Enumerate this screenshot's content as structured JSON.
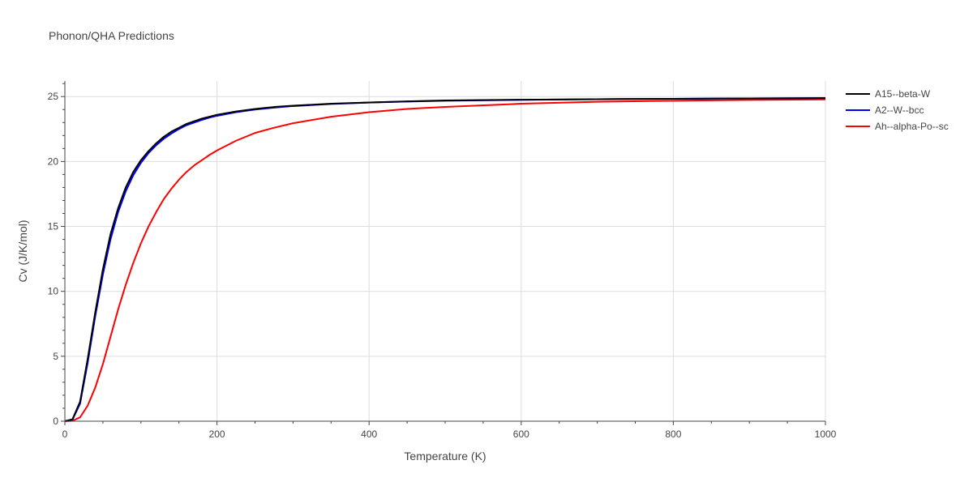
{
  "chart_data": {
    "type": "line",
    "title": "Phonon/QHA Predictions",
    "xlabel": "Temperature (K)",
    "ylabel": "Cv (J/K/mol)",
    "xlim": [
      0,
      1000
    ],
    "ylim": [
      0,
      26.2
    ],
    "x_ticks": [
      0,
      200,
      400,
      600,
      800,
      1000
    ],
    "y_ticks": [
      0,
      5,
      10,
      15,
      20,
      25
    ],
    "grid": true,
    "legend_position": "top-right, outside plot",
    "series": [
      {
        "name": "A15--beta-W",
        "color": "#000000",
        "x": [
          0,
          10,
          20,
          30,
          40,
          50,
          60,
          70,
          80,
          90,
          100,
          110,
          120,
          130,
          140,
          150,
          160,
          170,
          180,
          190,
          200,
          225,
          250,
          275,
          300,
          350,
          400,
          450,
          500,
          600,
          700,
          800,
          900,
          1000
        ],
        "y": [
          0,
          0.15,
          1.5,
          4.8,
          8.4,
          11.7,
          14.4,
          16.4,
          18.0,
          19.2,
          20.1,
          20.8,
          21.4,
          21.9,
          22.3,
          22.6,
          22.9,
          23.1,
          23.3,
          23.45,
          23.6,
          23.85,
          24.05,
          24.2,
          24.3,
          24.45,
          24.55,
          24.63,
          24.7,
          24.76,
          24.8,
          24.83,
          24.86,
          24.88
        ]
      },
      {
        "name": "A2--W--bcc",
        "color": "#0000ff",
        "x": [
          0,
          10,
          20,
          30,
          40,
          50,
          60,
          70,
          80,
          90,
          100,
          110,
          120,
          130,
          140,
          150,
          160,
          170,
          180,
          190,
          200,
          225,
          250,
          275,
          300,
          350,
          400,
          450,
          500,
          600,
          700,
          800,
          900,
          1000
        ],
        "y": [
          0,
          0.12,
          1.35,
          4.5,
          8.1,
          11.3,
          14.0,
          16.1,
          17.7,
          18.95,
          19.9,
          20.65,
          21.25,
          21.75,
          22.15,
          22.5,
          22.8,
          23.0,
          23.2,
          23.38,
          23.52,
          23.8,
          24.0,
          24.15,
          24.27,
          24.43,
          24.54,
          24.62,
          24.68,
          24.75,
          24.8,
          24.83,
          24.86,
          24.88
        ]
      },
      {
        "name": "Ah--alpha-Po--sc",
        "color": "#ff0000",
        "x": [
          0,
          10,
          20,
          30,
          40,
          50,
          60,
          70,
          80,
          90,
          100,
          110,
          120,
          130,
          140,
          150,
          160,
          170,
          180,
          190,
          200,
          225,
          250,
          275,
          300,
          350,
          400,
          450,
          500,
          600,
          700,
          800,
          900,
          1000
        ],
        "y": [
          0,
          0.03,
          0.3,
          1.2,
          2.6,
          4.4,
          6.5,
          8.6,
          10.5,
          12.2,
          13.7,
          15.0,
          16.1,
          17.1,
          17.9,
          18.6,
          19.2,
          19.7,
          20.1,
          20.5,
          20.85,
          21.6,
          22.2,
          22.6,
          22.95,
          23.45,
          23.8,
          24.05,
          24.2,
          24.45,
          24.6,
          24.68,
          24.74,
          24.78
        ]
      }
    ]
  }
}
